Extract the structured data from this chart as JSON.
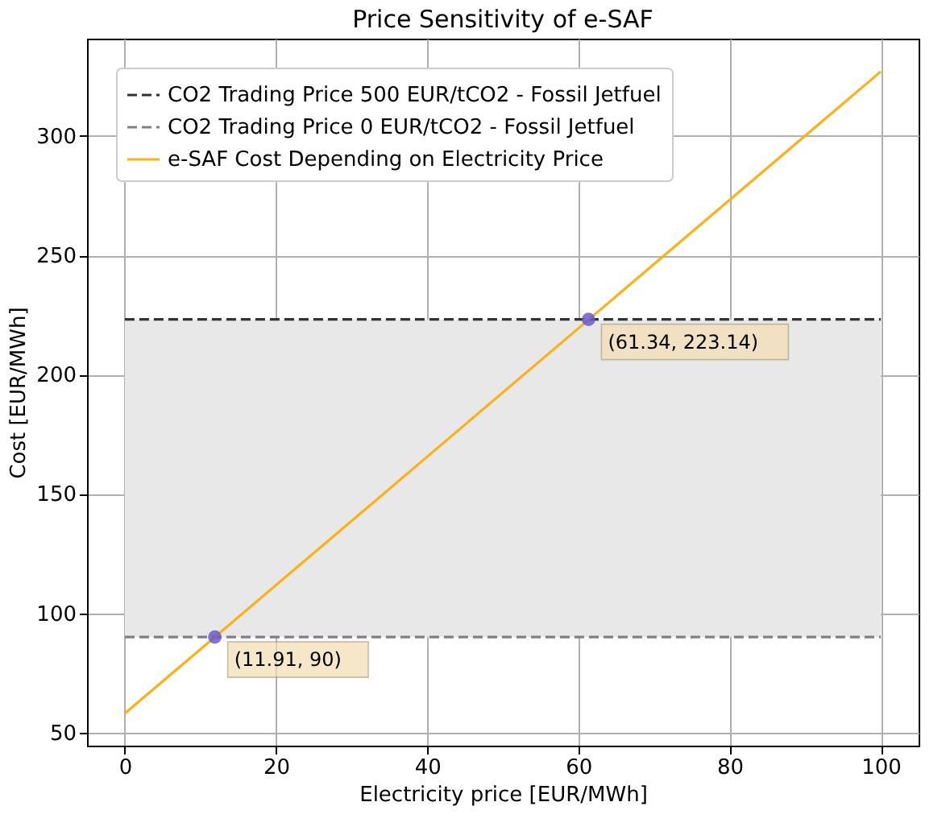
{
  "chart_data": {
    "type": "line",
    "title": "Price Sensitivity of e-SAF",
    "xlabel": "Electricity price [EUR/MWh]",
    "ylabel": "Cost [EUR/MWh]",
    "xlim": [
      -5,
      105
    ],
    "ylim": [
      44.5,
      340.8
    ],
    "xticks": [
      0,
      20,
      40,
      60,
      80,
      100
    ],
    "yticks": [
      50,
      100,
      150,
      200,
      250,
      300
    ],
    "grid": true,
    "legend": "top left",
    "series": [
      {
        "name": "CO2 Trading Price 500 EUR/tCO2 - Fossil Jetfuel",
        "color": "#333333",
        "line_style": "dashed",
        "x": [
          0,
          100
        ],
        "values": [
          223.14,
          223.14
        ]
      },
      {
        "name": "CO2 Trading Price 0 EUR/tCO2     - Fossil Jetfuel",
        "color": "#808080",
        "line_style": "dashed",
        "x": [
          0,
          100
        ],
        "values": [
          90,
          90
        ]
      },
      {
        "name": "e-SAF Cost Depending on Electricity Price",
        "color": "#fbb117",
        "line_style": "solid",
        "x": [
          0,
          100
        ],
        "values": [
          58,
          327
        ]
      },
      {
        "color": "#6a5acd",
        "type": "scatter",
        "marker": "circle",
        "x": [
          11.91,
          61.34
        ],
        "values": [
          90,
          223.14
        ]
      }
    ],
    "bands": [
      {
        "axis": "y",
        "from": 90,
        "to": 223.14,
        "color": "#e8e8e8"
      }
    ],
    "annotations": [
      {
        "text": "(11.91, 90)",
        "x": 11.91,
        "y": 90
      },
      {
        "text": "(61.34, 223.14)",
        "x": 61.34,
        "y": 223.14
      }
    ]
  }
}
